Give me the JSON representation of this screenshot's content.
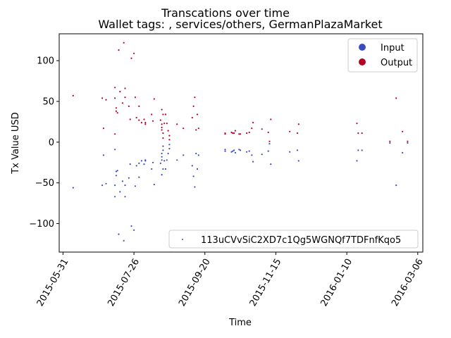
{
  "chart_data": {
    "type": "scatter",
    "title": "Transcations over time",
    "subtitle": "Wallet tags: , services/others, GermanPlazaMarket",
    "xlabel": "Time",
    "ylabel": "Tx Value USD",
    "xlim": [
      "2015-05-28",
      "2016-03-10"
    ],
    "ylim": [
      -135,
      133
    ],
    "x_ticks": [
      "2015-05-31",
      "2015-07-26",
      "2015-09-20",
      "2015-11-15",
      "2016-01-10",
      "2016-03-06"
    ],
    "y_ticks": [
      -100,
      -50,
      0,
      50,
      100
    ],
    "grid": false,
    "series": [
      {
        "name": "Input",
        "color": "#3a4cc0",
        "points": [
          [
            "2015-06-08",
            -56
          ],
          [
            "2015-07-01",
            -53
          ],
          [
            "2015-07-02",
            -16
          ],
          [
            "2015-07-04",
            -51
          ],
          [
            "2015-07-11",
            -67
          ],
          [
            "2015-07-11",
            -53
          ],
          [
            "2015-07-11",
            -9
          ],
          [
            "2015-07-12",
            -36
          ],
          [
            "2015-07-12",
            -41
          ],
          [
            "2015-07-13",
            -35
          ],
          [
            "2015-07-14",
            -113
          ],
          [
            "2015-07-15",
            -61
          ],
          [
            "2015-07-17",
            -48
          ],
          [
            "2015-07-18",
            -121
          ],
          [
            "2015-07-19",
            -53
          ],
          [
            "2015-07-19",
            -67
          ],
          [
            "2015-07-22",
            -44
          ],
          [
            "2015-07-23",
            -27
          ],
          [
            "2015-07-24",
            -103
          ],
          [
            "2015-07-26",
            -108
          ],
          [
            "2015-07-27",
            -54
          ],
          [
            "2015-07-28",
            -29
          ],
          [
            "2015-07-30",
            -43
          ],
          [
            "2015-07-30",
            -26
          ],
          [
            "2015-08-01",
            -23
          ],
          [
            "2015-08-03",
            -27
          ],
          [
            "2015-08-04",
            -23
          ],
          [
            "2015-08-04",
            -22
          ],
          [
            "2015-08-09",
            -33
          ],
          [
            "2015-08-10",
            -25
          ],
          [
            "2015-08-11",
            -52
          ],
          [
            "2015-08-16",
            -26
          ],
          [
            "2015-08-17",
            -22
          ],
          [
            "2015-08-17",
            -18
          ],
          [
            "2015-08-17",
            -14
          ],
          [
            "2015-08-17",
            -40
          ],
          [
            "2015-08-18",
            -33
          ],
          [
            "2015-08-18",
            -10
          ],
          [
            "2015-08-18",
            -5
          ],
          [
            "2015-08-19",
            -23
          ],
          [
            "2015-08-20",
            -33
          ],
          [
            "2015-08-21",
            -22
          ],
          [
            "2015-08-22",
            -14
          ],
          [
            "2015-08-23",
            -8
          ],
          [
            "2015-08-23",
            -3
          ],
          [
            "2015-08-29",
            -22
          ],
          [
            "2015-09-03",
            -16
          ],
          [
            "2015-09-10",
            -29
          ],
          [
            "2015-09-11",
            -42
          ],
          [
            "2015-09-12",
            -55
          ],
          [
            "2015-09-13",
            -14
          ],
          [
            "2015-09-14",
            -33
          ],
          [
            "2015-09-15",
            -16
          ],
          [
            "2015-10-06",
            -9
          ],
          [
            "2015-10-06",
            -11
          ],
          [
            "2015-10-11",
            -12
          ],
          [
            "2015-10-12",
            -11
          ],
          [
            "2015-10-13",
            -10
          ],
          [
            "2015-10-14",
            -13
          ],
          [
            "2015-10-17",
            -9
          ],
          [
            "2015-10-18",
            -10
          ],
          [
            "2015-10-23",
            -12
          ],
          [
            "2015-10-25",
            -11
          ],
          [
            "2015-10-27",
            -16
          ],
          [
            "2015-10-28",
            -24
          ],
          [
            "2015-11-04",
            -15
          ],
          [
            "2015-11-09",
            -11
          ],
          [
            "2015-11-10",
            -2
          ],
          [
            "2015-11-11",
            -27
          ],
          [
            "2015-11-26",
            -12
          ],
          [
            "2015-12-02",
            -10
          ],
          [
            "2015-12-03",
            -23
          ],
          [
            "2016-01-18",
            -23
          ],
          [
            "2016-01-19",
            -10
          ],
          [
            "2016-01-22",
            -10
          ],
          [
            "2016-02-13",
            -1
          ],
          [
            "2016-02-18",
            -53
          ],
          [
            "2016-02-23",
            -13
          ],
          [
            "2016-02-27",
            -1
          ]
        ]
      },
      {
        "name": "Output",
        "color": "#b40426",
        "points": [
          [
            "2015-06-08",
            57
          ],
          [
            "2015-07-01",
            54
          ],
          [
            "2015-07-02",
            17
          ],
          [
            "2015-07-04",
            52
          ],
          [
            "2015-07-11",
            67
          ],
          [
            "2015-07-11",
            54
          ],
          [
            "2015-07-11",
            10
          ],
          [
            "2015-07-12",
            38
          ],
          [
            "2015-07-12",
            42
          ],
          [
            "2015-07-13",
            36
          ],
          [
            "2015-07-14",
            113
          ],
          [
            "2015-07-15",
            62
          ],
          [
            "2015-07-17",
            48
          ],
          [
            "2015-07-18",
            122
          ],
          [
            "2015-07-19",
            55
          ],
          [
            "2015-07-19",
            66
          ],
          [
            "2015-07-22",
            44
          ],
          [
            "2015-07-23",
            28
          ],
          [
            "2015-07-24",
            103
          ],
          [
            "2015-07-26",
            109
          ],
          [
            "2015-07-27",
            55
          ],
          [
            "2015-07-28",
            30
          ],
          [
            "2015-07-30",
            44
          ],
          [
            "2015-07-30",
            27
          ],
          [
            "2015-08-01",
            24
          ],
          [
            "2015-08-03",
            28
          ],
          [
            "2015-08-04",
            24
          ],
          [
            "2015-08-04",
            22
          ],
          [
            "2015-08-09",
            34
          ],
          [
            "2015-08-10",
            26
          ],
          [
            "2015-08-11",
            53
          ],
          [
            "2015-08-16",
            27
          ],
          [
            "2015-08-17",
            22
          ],
          [
            "2015-08-17",
            18
          ],
          [
            "2015-08-17",
            15
          ],
          [
            "2015-08-17",
            40
          ],
          [
            "2015-08-18",
            34
          ],
          [
            "2015-08-18",
            11
          ],
          [
            "2015-08-18",
            5
          ],
          [
            "2015-08-19",
            23
          ],
          [
            "2015-08-20",
            34
          ],
          [
            "2015-08-21",
            23
          ],
          [
            "2015-08-22",
            14
          ],
          [
            "2015-08-23",
            8
          ],
          [
            "2015-08-23",
            3
          ],
          [
            "2015-08-29",
            22
          ],
          [
            "2015-09-03",
            17
          ],
          [
            "2015-09-10",
            30
          ],
          [
            "2015-09-11",
            44
          ],
          [
            "2015-09-12",
            55
          ],
          [
            "2015-09-13",
            15
          ],
          [
            "2015-09-14",
            34
          ],
          [
            "2015-09-15",
            17
          ],
          [
            "2015-10-06",
            11
          ],
          [
            "2015-10-06",
            10
          ],
          [
            "2015-10-11",
            12
          ],
          [
            "2015-10-12",
            11
          ],
          [
            "2015-10-13",
            11
          ],
          [
            "2015-10-14",
            14
          ],
          [
            "2015-10-17",
            10
          ],
          [
            "2015-10-18",
            10
          ],
          [
            "2015-10-23",
            11
          ],
          [
            "2015-10-25",
            12
          ],
          [
            "2015-10-27",
            17
          ],
          [
            "2015-10-28",
            24
          ],
          [
            "2015-11-04",
            16
          ],
          [
            "2015-11-09",
            12
          ],
          [
            "2015-11-10",
            1
          ],
          [
            "2015-11-11",
            28
          ],
          [
            "2015-11-26",
            13
          ],
          [
            "2015-12-02",
            11
          ],
          [
            "2015-12-03",
            22
          ],
          [
            "2016-01-18",
            23
          ],
          [
            "2016-01-19",
            11
          ],
          [
            "2016-01-22",
            11
          ],
          [
            "2016-02-13",
            1
          ],
          [
            "2016-02-18",
            54
          ],
          [
            "2016-02-23",
            13
          ],
          [
            "2016-02-27",
            1
          ]
        ]
      }
    ],
    "legend_top": {
      "placement": "upper-right",
      "entries": [
        {
          "label": "Input",
          "color": "#3a4cc0"
        },
        {
          "label": "Output",
          "color": "#b40426"
        }
      ]
    },
    "legend_bottom": {
      "placement": "lower-right",
      "label": "113uCVvSiC2XD7c1Qg5WGNQf7TDFnfKqo5",
      "color": "#3a4cc0"
    }
  }
}
